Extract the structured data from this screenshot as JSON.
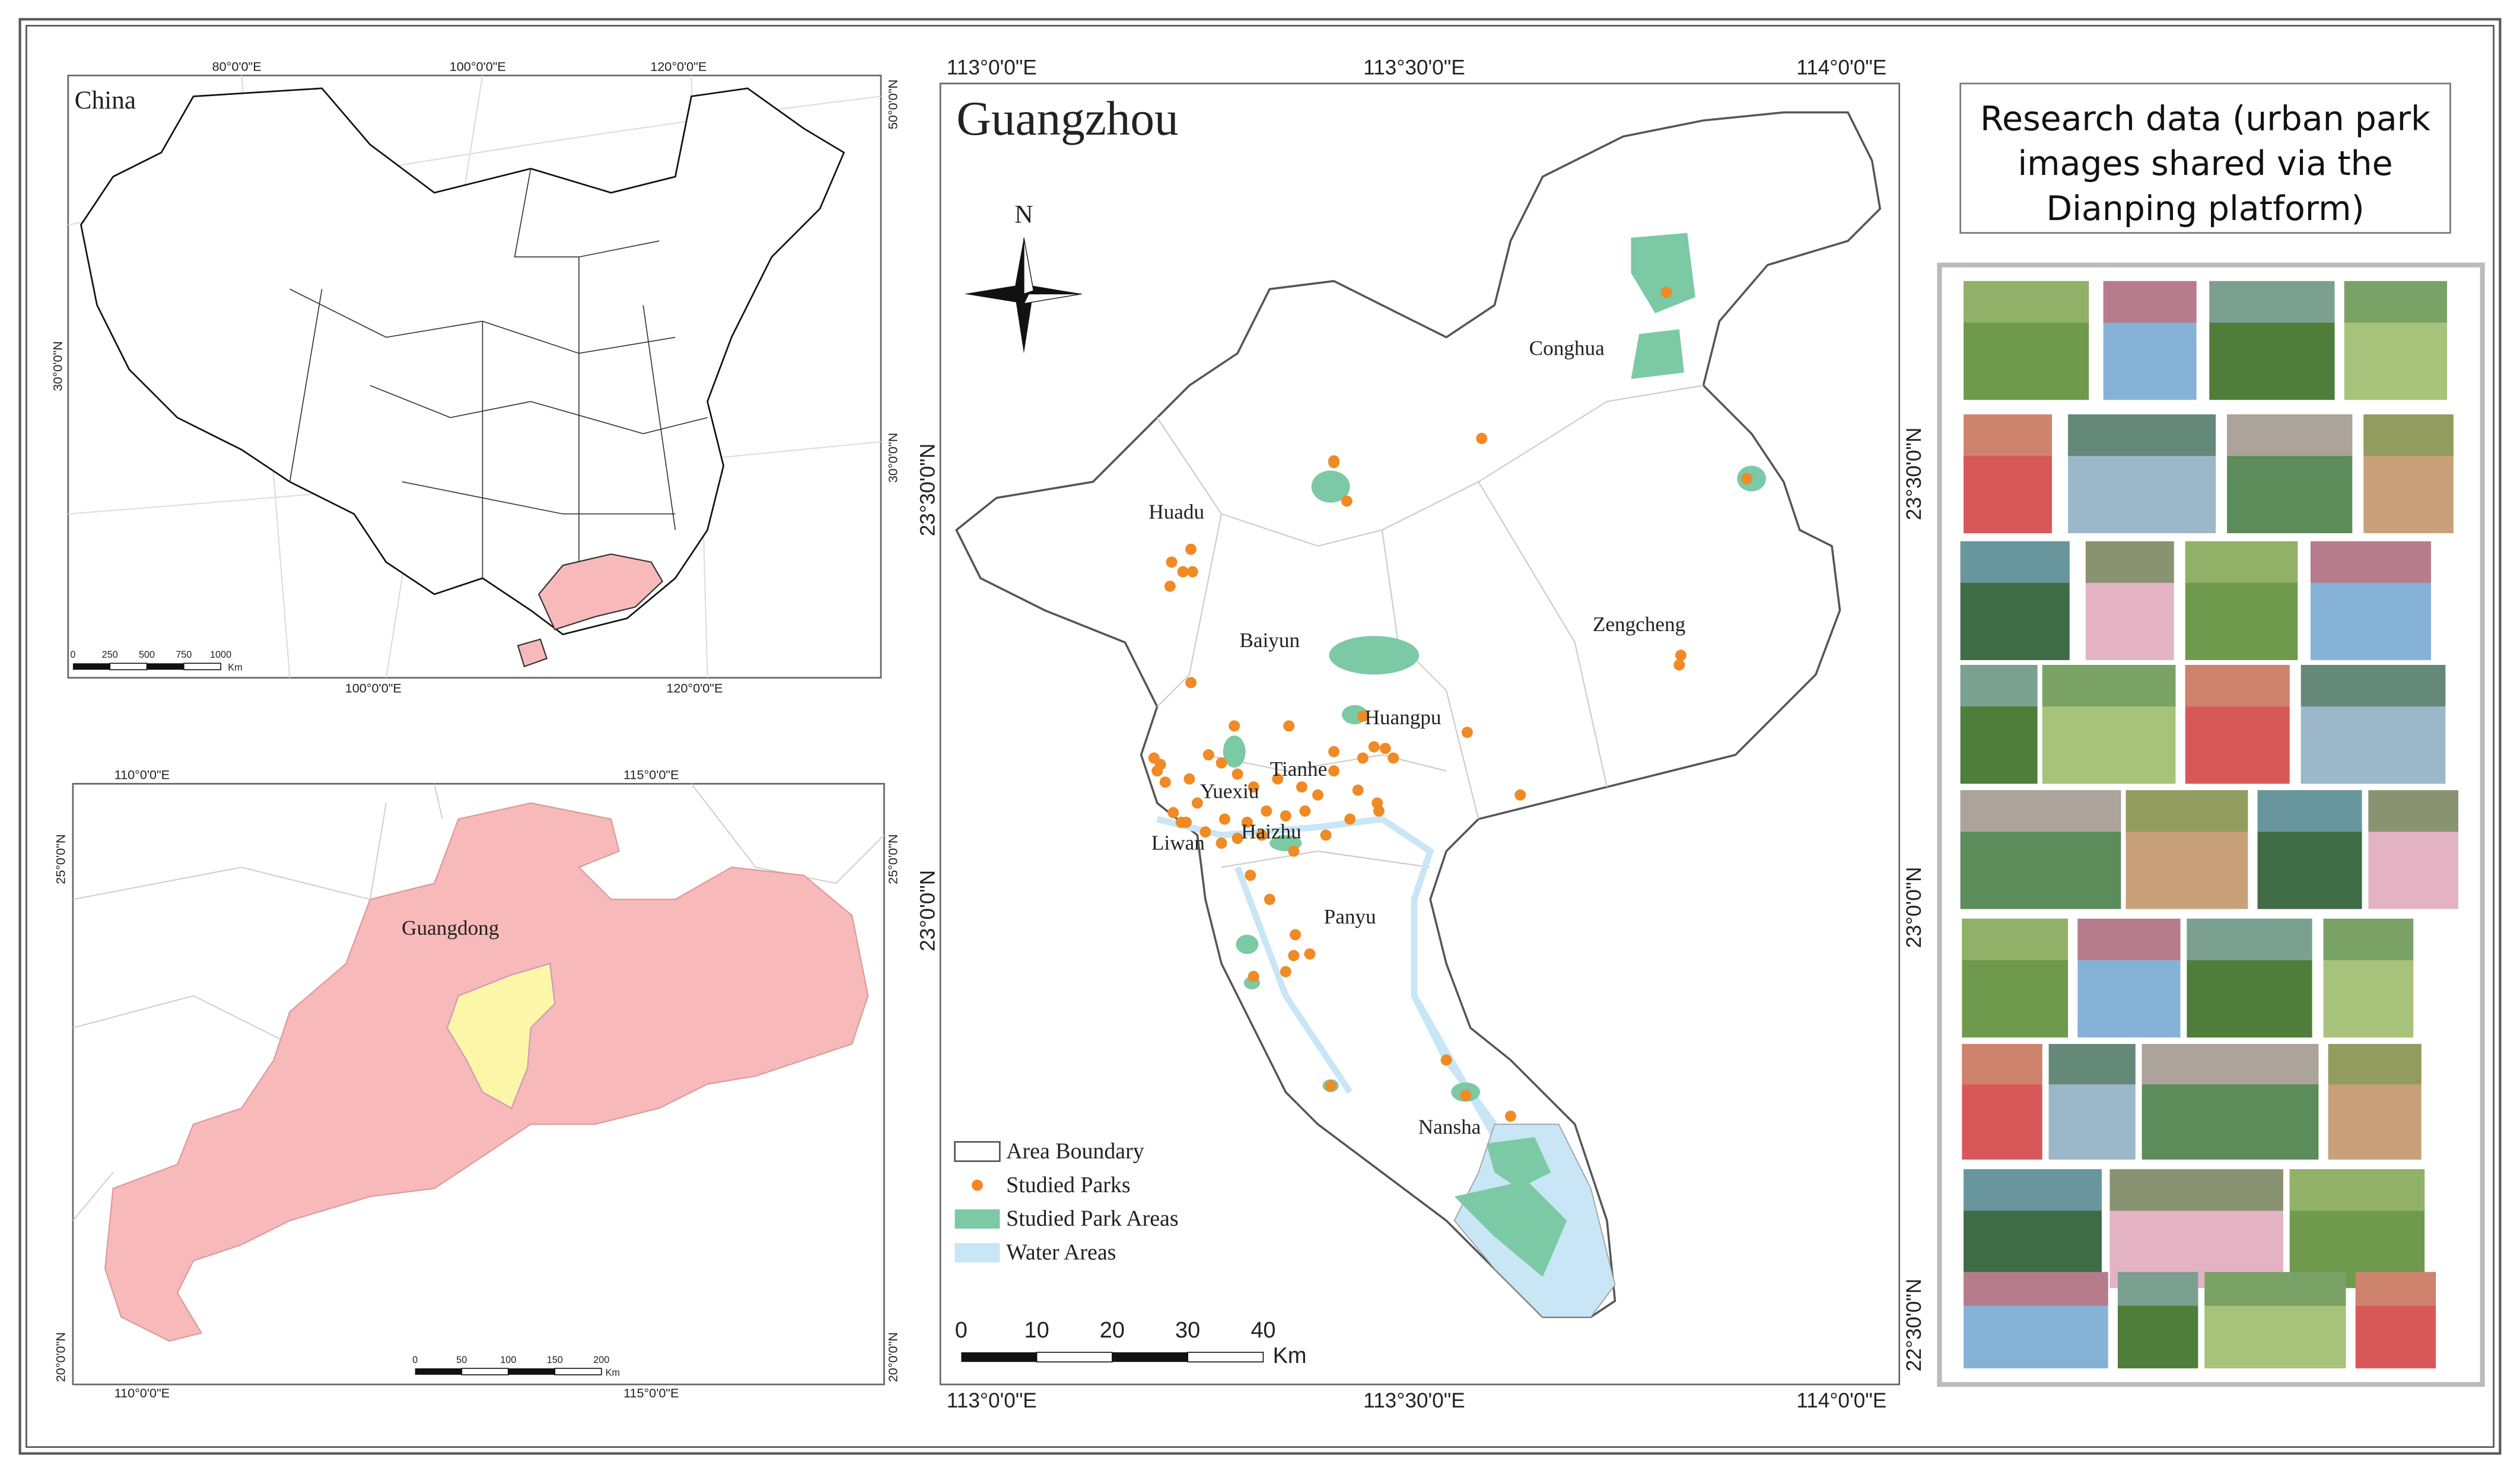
{
  "china_map": {
    "title": "China",
    "lon_labels_top": [
      "80°0'0\"E",
      "100°0'0\"E",
      "120°0'0\"E"
    ],
    "lon_labels_bottom": [
      "100°0'0\"E",
      "120°0'0\"E"
    ],
    "lat_labels_left": [
      "30°0'0\"N"
    ],
    "lat_labels_right": [
      "50°0'0\"N",
      "30°0'0\"N"
    ],
    "scale_labels": [
      "0",
      "250",
      "500",
      "750",
      "1000"
    ],
    "scale_unit": "Km"
  },
  "guangdong_map": {
    "label": "Guangdong",
    "lon_labels_top": [
      "110°0'0\"E",
      "115°0'0\"E"
    ],
    "lon_labels_bottom": [
      "110°0'0\"E",
      "115°0'0\"E"
    ],
    "lat_labels_left": [
      "25°0'0\"N",
      "20°0'0\"N"
    ],
    "lat_labels_right": [
      "25°0'0\"N",
      "20°0'0\"N"
    ],
    "scale_labels": [
      "0",
      "50",
      "100",
      "150",
      "200"
    ],
    "scale_unit": "Km"
  },
  "guangzhou_map": {
    "title": "Guangzhou",
    "north": "N",
    "districts": [
      "Conghua",
      "Huadu",
      "Baiyun",
      "Zengcheng",
      "Huangpu",
      "Tianhe",
      "Yuexiu",
      "Haizhu",
      "Liwan",
      "Panyu",
      "Nansha"
    ],
    "lon_labels_top": [
      "113°0'0\"E",
      "113°30'0\"E",
      "114°0'0\"E"
    ],
    "lon_labels_bottom": [
      "113°0'0\"E",
      "113°30'0\"E",
      "114°0'0\"E"
    ],
    "lat_labels_left": [
      "23°30'0\"N",
      "23°0'0\"N"
    ],
    "lat_labels_right": [
      "23°30'0\"N",
      "23°0'0\"N",
      "22°30'0\"N"
    ],
    "legend": [
      "Area Boundary",
      "Studied Parks",
      "Studied Park Areas",
      "Water Areas"
    ],
    "scale_labels": [
      "0",
      "10",
      "20",
      "30",
      "40"
    ],
    "scale_unit": "Km"
  },
  "research_data": {
    "title": "Research data (urban park images shared via the Dianping platform)"
  }
}
